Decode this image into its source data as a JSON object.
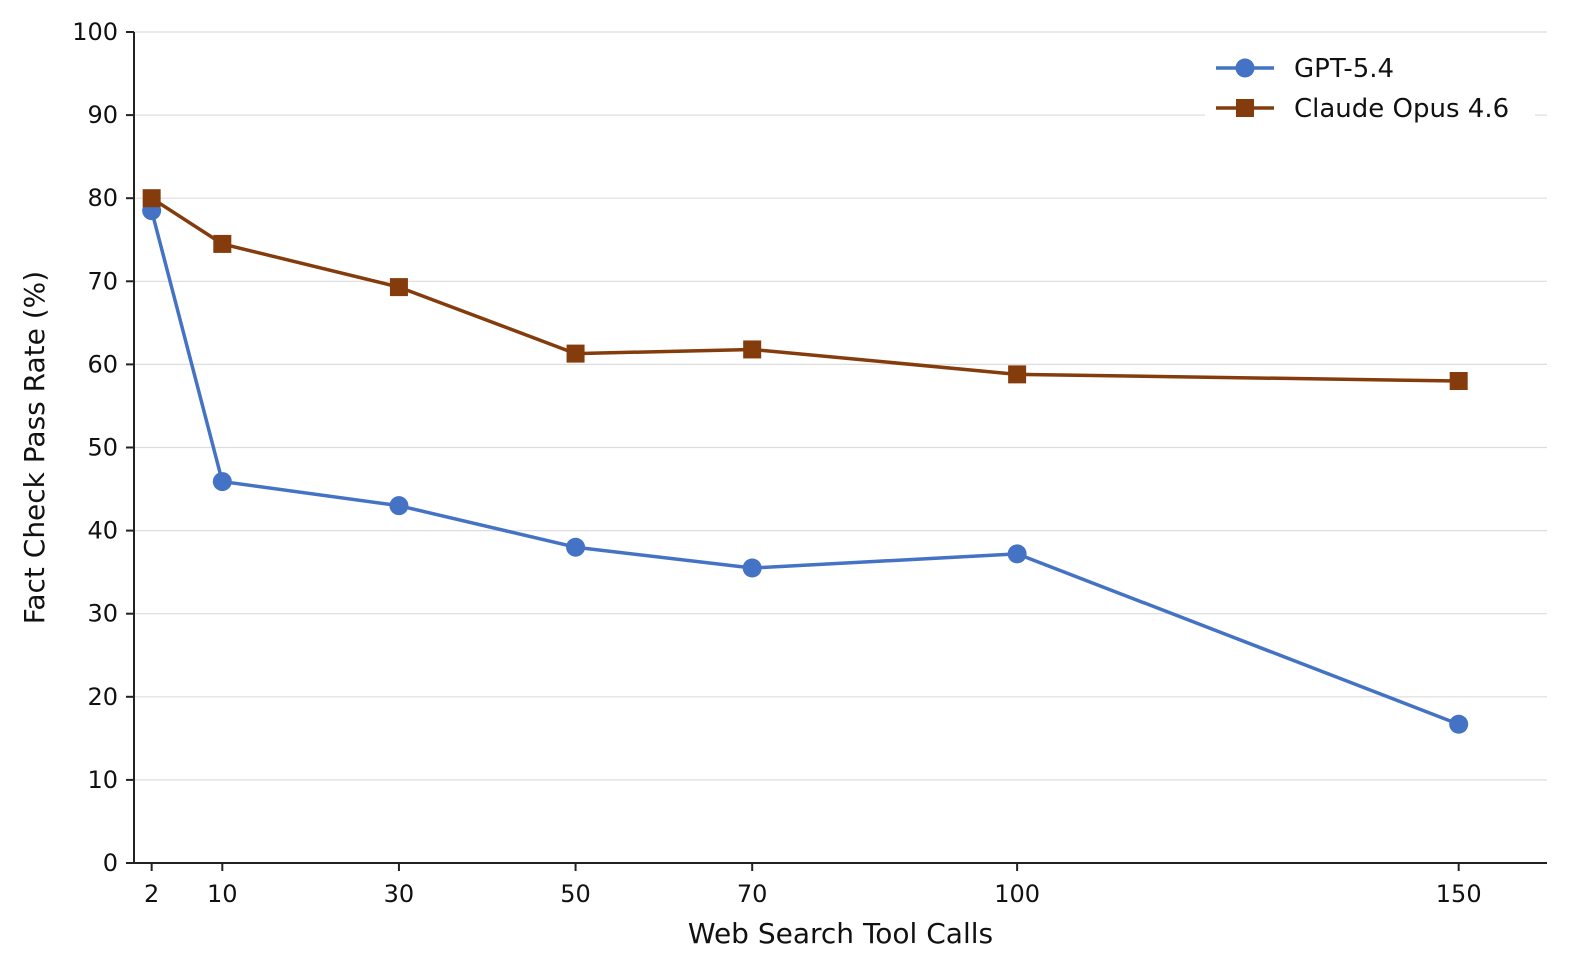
{
  "chart_data": {
    "type": "line",
    "title": "",
    "xlabel": "Web Search Tool Calls",
    "ylabel": "Fact Check Pass Rate (%)",
    "x": [
      2,
      10,
      30,
      50,
      70,
      100,
      150
    ],
    "x_ticks": [
      "2",
      "10",
      "30",
      "50",
      "70",
      "100",
      "150"
    ],
    "y_ticks": [
      "0",
      "10",
      "20",
      "30",
      "40",
      "50",
      "60",
      "70",
      "80",
      "90",
      "100"
    ],
    "ylim": [
      0,
      100
    ],
    "xlim": [
      0,
      160
    ],
    "grid": "horizontal",
    "legend_position": "top-right",
    "series": [
      {
        "name": "GPT-5.4",
        "color": "#4472C4",
        "marker": "circle",
        "values": [
          78.5,
          45.9,
          43.0,
          38.0,
          35.5,
          37.2,
          16.7
        ]
      },
      {
        "name": "Claude Opus 4.6",
        "color": "#843C0C",
        "marker": "square",
        "values": [
          80.0,
          74.5,
          69.3,
          61.3,
          61.8,
          58.8,
          58.0
        ]
      }
    ]
  }
}
